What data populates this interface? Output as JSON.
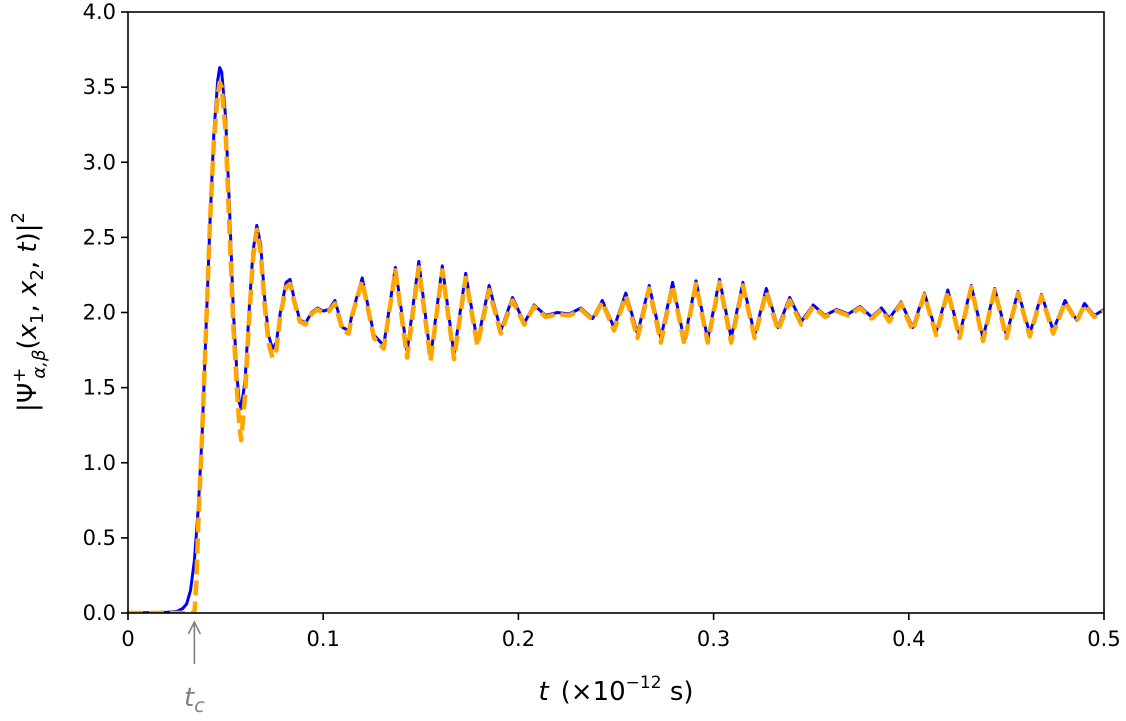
{
  "chart_data": {
    "type": "line",
    "title": "",
    "xlabel": {
      "var": "t",
      "unit_prefix": "(×10",
      "exponent": "−12",
      "unit": " s)"
    },
    "ylabel": {
      "prefix": "|Ψ",
      "sup": "+",
      "sub": "α,β",
      "args_open": "(",
      "x": "x",
      "x1_sub": "1",
      "comma": ", ",
      "x2_sub": "2",
      "t": "t",
      "args_close": ")|",
      "exponent": "2"
    },
    "xlim": [
      0,
      0.5
    ],
    "ylim": [
      0,
      4.0
    ],
    "x_ticks": [
      0,
      0.1,
      0.2,
      0.3,
      0.4,
      0.5
    ],
    "x_tick_labels": [
      "0",
      "0.1",
      "0.2",
      "0.3",
      "0.4",
      "0.5"
    ],
    "y_ticks": [
      0,
      0.5,
      1.0,
      1.5,
      2.0,
      2.5,
      3.0,
      3.5,
      4.0
    ],
    "y_tick_labels": [
      "0.0",
      "0.5",
      "1.0",
      "1.5",
      "2.0",
      "2.5",
      "3.0",
      "3.5",
      "4.0"
    ],
    "grid": false,
    "annotation": {
      "label_var": "t",
      "label_sub": "c",
      "x": 0.034,
      "color": "#808080"
    },
    "series": [
      {
        "color": "#0000ff",
        "style": "solid",
        "points": [
          [
            0.0,
            0.0
          ],
          [
            0.02,
            0.005
          ],
          [
            0.025,
            0.01
          ],
          [
            0.028,
            0.03
          ],
          [
            0.03,
            0.06
          ],
          [
            0.032,
            0.15
          ],
          [
            0.034,
            0.35
          ],
          [
            0.036,
            0.7
          ],
          [
            0.038,
            1.2
          ],
          [
            0.04,
            1.9
          ],
          [
            0.042,
            2.6
          ],
          [
            0.044,
            3.2
          ],
          [
            0.046,
            3.55
          ],
          [
            0.047,
            3.63
          ],
          [
            0.048,
            3.6
          ],
          [
            0.05,
            3.3
          ],
          [
            0.052,
            2.7
          ],
          [
            0.054,
            2.0
          ],
          [
            0.056,
            1.55
          ],
          [
            0.057,
            1.4
          ],
          [
            0.058,
            1.36
          ],
          [
            0.06,
            1.55
          ],
          [
            0.062,
            2.0
          ],
          [
            0.064,
            2.4
          ],
          [
            0.066,
            2.58
          ],
          [
            0.068,
            2.45
          ],
          [
            0.07,
            2.1
          ],
          [
            0.072,
            1.85
          ],
          [
            0.074,
            1.76
          ],
          [
            0.076,
            1.8
          ],
          [
            0.078,
            2.0
          ],
          [
            0.081,
            2.2
          ],
          [
            0.083,
            2.22
          ],
          [
            0.085,
            2.1
          ],
          [
            0.088,
            1.95
          ],
          [
            0.091,
            1.93
          ],
          [
            0.094,
            2.0
          ],
          [
            0.097,
            2.03
          ],
          [
            0.1,
            2.01
          ],
          [
            0.103,
            2.02
          ],
          [
            0.106,
            2.08
          ],
          [
            0.11,
            1.9
          ],
          [
            0.113,
            1.88
          ],
          [
            0.115,
            2.0
          ],
          [
            0.12,
            2.23
          ],
          [
            0.126,
            1.85
          ],
          [
            0.131,
            1.78
          ],
          [
            0.137,
            2.3
          ],
          [
            0.143,
            1.74
          ],
          [
            0.149,
            2.34
          ],
          [
            0.155,
            1.7
          ],
          [
            0.161,
            2.31
          ],
          [
            0.167,
            1.72
          ],
          [
            0.173,
            2.26
          ],
          [
            0.179,
            1.8
          ],
          [
            0.185,
            2.18
          ],
          [
            0.191,
            1.88
          ],
          [
            0.197,
            2.1
          ],
          [
            0.203,
            1.93
          ],
          [
            0.208,
            2.05
          ],
          [
            0.214,
            1.98
          ],
          [
            0.22,
            2.0
          ],
          [
            0.226,
            1.99
          ],
          [
            0.232,
            2.03
          ],
          [
            0.238,
            1.96
          ],
          [
            0.243,
            2.08
          ],
          [
            0.249,
            1.9
          ],
          [
            0.255,
            2.13
          ],
          [
            0.261,
            1.86
          ],
          [
            0.267,
            2.18
          ],
          [
            0.273,
            1.83
          ],
          [
            0.279,
            2.2
          ],
          [
            0.285,
            1.81
          ],
          [
            0.291,
            2.21
          ],
          [
            0.297,
            1.82
          ],
          [
            0.303,
            2.22
          ],
          [
            0.309,
            1.83
          ],
          [
            0.315,
            2.2
          ],
          [
            0.321,
            1.85
          ],
          [
            0.327,
            2.16
          ],
          [
            0.333,
            1.9
          ],
          [
            0.339,
            2.1
          ],
          [
            0.345,
            1.94
          ],
          [
            0.351,
            2.05
          ],
          [
            0.357,
            1.98
          ],
          [
            0.363,
            2.02
          ],
          [
            0.369,
            1.99
          ],
          [
            0.375,
            2.04
          ],
          [
            0.381,
            1.97
          ],
          [
            0.386,
            2.03
          ],
          [
            0.39,
            1.96
          ],
          [
            0.396,
            2.07
          ],
          [
            0.402,
            1.9
          ],
          [
            0.408,
            2.13
          ],
          [
            0.414,
            1.87
          ],
          [
            0.42,
            2.15
          ],
          [
            0.426,
            1.85
          ],
          [
            0.432,
            2.18
          ],
          [
            0.438,
            1.83
          ],
          [
            0.444,
            2.16
          ],
          [
            0.45,
            1.85
          ],
          [
            0.456,
            2.14
          ],
          [
            0.462,
            1.86
          ],
          [
            0.468,
            2.12
          ],
          [
            0.474,
            1.88
          ],
          [
            0.48,
            2.08
          ],
          [
            0.486,
            1.95
          ],
          [
            0.49,
            2.06
          ],
          [
            0.495,
            1.98
          ],
          [
            0.5,
            2.02
          ]
        ]
      },
      {
        "color": "#ffa500",
        "style": "dashed",
        "points": [
          [
            0.0,
            0.0
          ],
          [
            0.034,
            0.0
          ],
          [
            0.035,
            0.2
          ],
          [
            0.036,
            0.6
          ],
          [
            0.038,
            1.2
          ],
          [
            0.04,
            1.9
          ],
          [
            0.042,
            2.6
          ],
          [
            0.044,
            3.15
          ],
          [
            0.046,
            3.45
          ],
          [
            0.047,
            3.53
          ],
          [
            0.048,
            3.5
          ],
          [
            0.05,
            3.2
          ],
          [
            0.052,
            2.55
          ],
          [
            0.054,
            1.9
          ],
          [
            0.056,
            1.45
          ],
          [
            0.057,
            1.25
          ],
          [
            0.058,
            1.15
          ],
          [
            0.06,
            1.45
          ],
          [
            0.062,
            1.95
          ],
          [
            0.064,
            2.35
          ],
          [
            0.066,
            2.55
          ],
          [
            0.068,
            2.4
          ],
          [
            0.07,
            2.05
          ],
          [
            0.072,
            1.8
          ],
          [
            0.074,
            1.7
          ],
          [
            0.076,
            1.75
          ],
          [
            0.078,
            1.98
          ],
          [
            0.081,
            2.17
          ],
          [
            0.083,
            2.19
          ],
          [
            0.085,
            2.08
          ],
          [
            0.088,
            1.94
          ],
          [
            0.091,
            1.92
          ],
          [
            0.094,
            1.99
          ],
          [
            0.097,
            2.02
          ],
          [
            0.1,
            2.0
          ],
          [
            0.103,
            2.01
          ],
          [
            0.106,
            2.06
          ],
          [
            0.11,
            1.88
          ],
          [
            0.113,
            1.86
          ],
          [
            0.115,
            1.99
          ],
          [
            0.12,
            2.21
          ],
          [
            0.126,
            1.83
          ],
          [
            0.131,
            1.76
          ],
          [
            0.137,
            2.28
          ],
          [
            0.143,
            1.7
          ],
          [
            0.149,
            2.3
          ],
          [
            0.155,
            1.68
          ],
          [
            0.161,
            2.28
          ],
          [
            0.167,
            1.69
          ],
          [
            0.173,
            2.23
          ],
          [
            0.179,
            1.78
          ],
          [
            0.185,
            2.15
          ],
          [
            0.191,
            1.86
          ],
          [
            0.197,
            2.08
          ],
          [
            0.203,
            1.92
          ],
          [
            0.208,
            2.04
          ],
          [
            0.214,
            1.97
          ],
          [
            0.22,
            1.99
          ],
          [
            0.226,
            1.98
          ],
          [
            0.232,
            2.02
          ],
          [
            0.238,
            1.95
          ],
          [
            0.243,
            2.07
          ],
          [
            0.249,
            1.88
          ],
          [
            0.255,
            2.11
          ],
          [
            0.261,
            1.83
          ],
          [
            0.267,
            2.16
          ],
          [
            0.273,
            1.8
          ],
          [
            0.279,
            2.18
          ],
          [
            0.285,
            1.79
          ],
          [
            0.291,
            2.19
          ],
          [
            0.297,
            1.8
          ],
          [
            0.303,
            2.2
          ],
          [
            0.309,
            1.8
          ],
          [
            0.315,
            2.18
          ],
          [
            0.321,
            1.83
          ],
          [
            0.327,
            2.14
          ],
          [
            0.333,
            1.88
          ],
          [
            0.339,
            2.08
          ],
          [
            0.345,
            1.92
          ],
          [
            0.351,
            2.04
          ],
          [
            0.357,
            1.97
          ],
          [
            0.363,
            2.01
          ],
          [
            0.369,
            1.98
          ],
          [
            0.375,
            2.03
          ],
          [
            0.381,
            1.96
          ],
          [
            0.386,
            2.02
          ],
          [
            0.39,
            1.94
          ],
          [
            0.396,
            2.06
          ],
          [
            0.402,
            1.88
          ],
          [
            0.408,
            2.12
          ],
          [
            0.414,
            1.85
          ],
          [
            0.42,
            2.14
          ],
          [
            0.426,
            1.83
          ],
          [
            0.432,
            2.17
          ],
          [
            0.438,
            1.81
          ],
          [
            0.444,
            2.15
          ],
          [
            0.45,
            1.83
          ],
          [
            0.456,
            2.13
          ],
          [
            0.462,
            1.84
          ],
          [
            0.468,
            2.11
          ],
          [
            0.474,
            1.86
          ],
          [
            0.48,
            2.07
          ],
          [
            0.486,
            1.94
          ],
          [
            0.49,
            2.05
          ],
          [
            0.495,
            1.97
          ],
          [
            0.5,
            2.01
          ]
        ]
      }
    ]
  }
}
